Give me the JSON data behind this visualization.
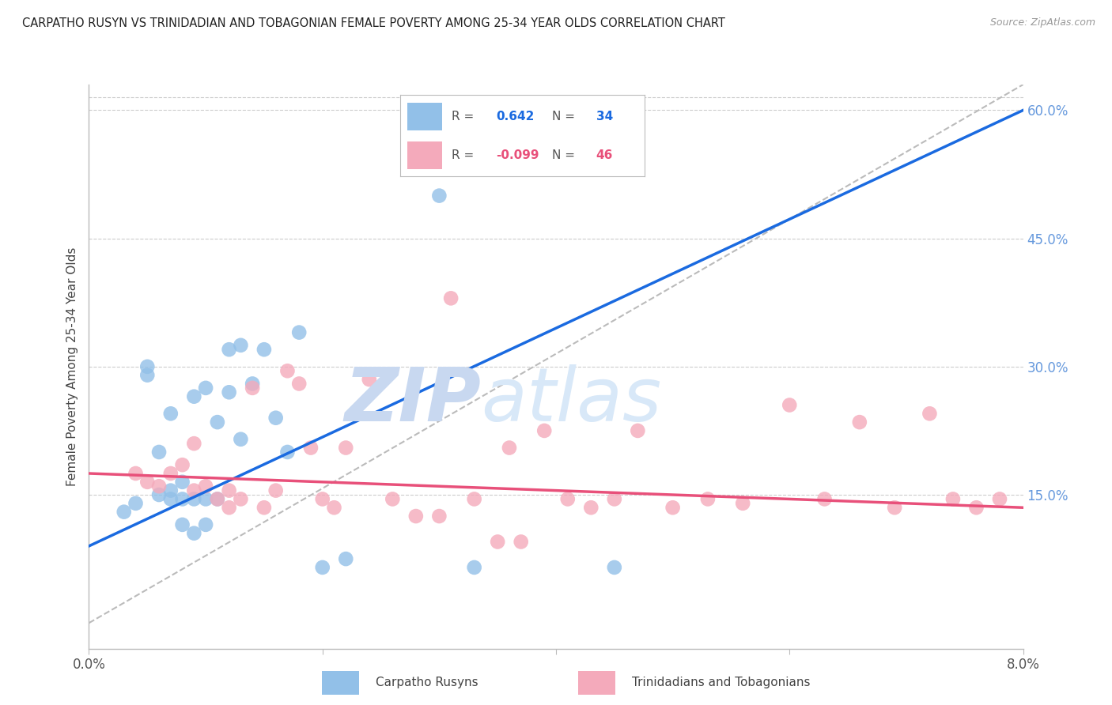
{
  "title": "CARPATHO RUSYN VS TRINIDADIAN AND TOBAGONIAN FEMALE POVERTY AMONG 25-34 YEAR OLDS CORRELATION CHART",
  "source": "Source: ZipAtlas.com",
  "ylabel": "Female Poverty Among 25-34 Year Olds",
  "right_yticklabels": [
    "15.0%",
    "30.0%",
    "45.0%",
    "60.0%"
  ],
  "right_ytick_vals": [
    0.15,
    0.3,
    0.45,
    0.6
  ],
  "xmin": 0.0,
  "xmax": 0.08,
  "ymin": -0.03,
  "ymax": 0.63,
  "watermark_zip": "ZIP",
  "watermark_atlas": "atlas",
  "legend_blue_r": "0.642",
  "legend_blue_n": "34",
  "legend_pink_r": "-0.099",
  "legend_pink_n": "46",
  "legend_blue_label": "Carpatho Rusyns",
  "legend_pink_label": "Trinidadians and Tobagonians",
  "blue_color": "#92C0E8",
  "pink_color": "#F4AABB",
  "trendline_blue": "#1A6AE0",
  "trendline_pink": "#E8507A",
  "refline_color": "#BBBBBB",
  "background": "#FFFFFF",
  "grid_color": "#CCCCCC",
  "right_tick_color": "#6699DD",
  "blue_scatter_x": [
    0.003,
    0.004,
    0.005,
    0.005,
    0.006,
    0.006,
    0.007,
    0.007,
    0.007,
    0.008,
    0.008,
    0.008,
    0.009,
    0.009,
    0.009,
    0.01,
    0.01,
    0.01,
    0.011,
    0.011,
    0.012,
    0.012,
    0.013,
    0.013,
    0.014,
    0.015,
    0.016,
    0.017,
    0.018,
    0.02,
    0.022,
    0.03,
    0.033,
    0.045
  ],
  "blue_scatter_y": [
    0.13,
    0.14,
    0.29,
    0.3,
    0.15,
    0.2,
    0.145,
    0.155,
    0.245,
    0.145,
    0.165,
    0.115,
    0.145,
    0.105,
    0.265,
    0.145,
    0.275,
    0.115,
    0.145,
    0.235,
    0.32,
    0.27,
    0.215,
    0.325,
    0.28,
    0.32,
    0.24,
    0.2,
    0.34,
    0.065,
    0.075,
    0.5,
    0.065,
    0.065
  ],
  "pink_scatter_x": [
    0.004,
    0.005,
    0.006,
    0.007,
    0.008,
    0.009,
    0.009,
    0.01,
    0.011,
    0.012,
    0.012,
    0.013,
    0.014,
    0.015,
    0.016,
    0.017,
    0.018,
    0.019,
    0.02,
    0.021,
    0.022,
    0.024,
    0.026,
    0.028,
    0.03,
    0.031,
    0.033,
    0.035,
    0.036,
    0.037,
    0.039,
    0.041,
    0.043,
    0.045,
    0.047,
    0.05,
    0.053,
    0.056,
    0.06,
    0.063,
    0.066,
    0.069,
    0.072,
    0.074,
    0.076,
    0.078
  ],
  "pink_scatter_y": [
    0.175,
    0.165,
    0.16,
    0.175,
    0.185,
    0.155,
    0.21,
    0.16,
    0.145,
    0.135,
    0.155,
    0.145,
    0.275,
    0.135,
    0.155,
    0.295,
    0.28,
    0.205,
    0.145,
    0.135,
    0.205,
    0.285,
    0.145,
    0.125,
    0.125,
    0.38,
    0.145,
    0.095,
    0.205,
    0.095,
    0.225,
    0.145,
    0.135,
    0.145,
    0.225,
    0.135,
    0.145,
    0.14,
    0.255,
    0.145,
    0.235,
    0.135,
    0.245,
    0.145,
    0.135,
    0.145
  ],
  "blue_trend_x": [
    0.0,
    0.08
  ],
  "blue_trend_y": [
    0.09,
    0.6
  ],
  "pink_trend_x": [
    0.0,
    0.08
  ],
  "pink_trend_y": [
    0.175,
    0.135
  ],
  "refline_x": [
    0.0,
    0.08
  ],
  "refline_y": [
    0.0,
    0.63
  ]
}
